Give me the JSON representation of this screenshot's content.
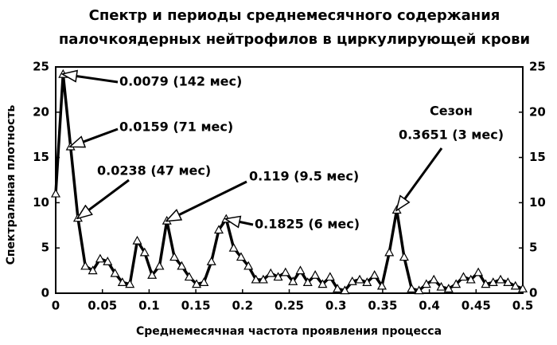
{
  "chart_data": {
    "type": "line",
    "title": [
      "Спектр и периоды среднемесячного содержания",
      "палочкоядерных нейтрофилов в циркулирующей крови"
    ],
    "x_label": "Среднемесячная частота проявления процесса",
    "y_label": "Спектральная плотность",
    "x": [
      0,
      0.0079,
      0.0159,
      0.0238,
      0.0317,
      0.0397,
      0.0476,
      0.0556,
      0.0635,
      0.0714,
      0.0794,
      0.0873,
      0.0952,
      0.1032,
      0.1111,
      0.119,
      0.127,
      0.1349,
      0.1429,
      0.1508,
      0.1587,
      0.1667,
      0.1746,
      0.1825,
      0.1905,
      0.1984,
      0.2063,
      0.2143,
      0.2222,
      0.2302,
      0.2381,
      0.246,
      0.254,
      0.2619,
      0.2698,
      0.2778,
      0.2857,
      0.2937,
      0.3016,
      0.3095,
      0.3175,
      0.3254,
      0.3333,
      0.3413,
      0.3492,
      0.3571,
      0.3651,
      0.373,
      0.381,
      0.3889,
      0.3968,
      0.4048,
      0.4127,
      0.4206,
      0.4286,
      0.4365,
      0.4444,
      0.4524,
      0.4603,
      0.4683,
      0.4762,
      0.4841,
      0.4921,
      0.5
    ],
    "series": [
      {
        "name": "Спектральная плотность",
        "color": "#000000",
        "values": [
          11,
          24.2,
          16.2,
          8.3,
          3,
          2.5,
          3.8,
          3.5,
          2.2,
          1.2,
          1.0,
          5.8,
          4.5,
          2.0,
          3.0,
          8.0,
          4.0,
          3.0,
          1.8,
          1.0,
          1.2,
          3.5,
          7.0,
          8.2,
          5.0,
          4.0,
          3.0,
          1.5,
          1.5,
          2.2,
          1.8,
          2.3,
          1.3,
          2.5,
          1.2,
          2.0,
          1.0,
          1.8,
          0.5,
          0.3,
          1.3,
          1.5,
          1.2,
          2.0,
          0.8,
          4.5,
          9.2,
          4.0,
          0.5,
          0.3,
          1.0,
          1.5,
          0.7,
          0.5,
          1.0,
          1.8,
          1.5,
          2.3,
          1.0,
          1.2,
          1.5,
          1.2,
          0.8,
          0.5
        ]
      }
    ],
    "xlim": [
      0,
      0.5
    ],
    "xticks": [
      0,
      0.05,
      0.1,
      0.15,
      0.2,
      0.25,
      0.3,
      0.35,
      0.4,
      0.45,
      0.5
    ],
    "ylim": [
      0,
      25
    ],
    "yticks": [
      0,
      5,
      10,
      15,
      20,
      25
    ],
    "y2lim": [
      0,
      25
    ],
    "y2ticks": [
      0,
      5,
      10,
      15,
      20,
      25
    ],
    "annotations": [
      "0.0079 (142 мес)",
      "0.0159 (71 мес)",
      "0.0238 (47 мес)",
      "0.119 (9.5 мес)",
      "0.1825 (6 мес)",
      "Сезон",
      "0.3651 (3 мес)"
    ]
  }
}
